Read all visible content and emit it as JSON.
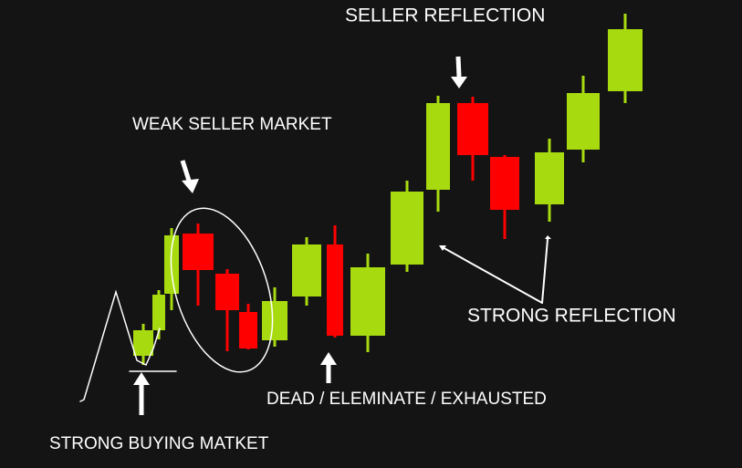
{
  "labels": {
    "seller_reflection": "SELLER REFLECTION",
    "weak_seller_market": "WEAK SELLER MARKET",
    "strong_reflection": "STRONG REFLECTION",
    "dead_exhausted": "DEAD / ELEMINATE / EXHAUSTED",
    "strong_buying": "STRONG BUYING MATKET"
  }
}
